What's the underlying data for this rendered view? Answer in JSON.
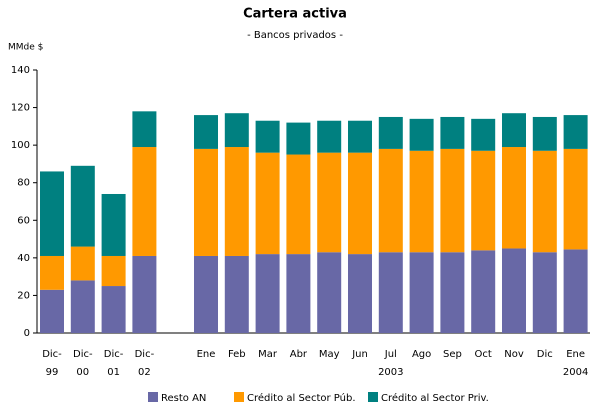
{
  "chart_data": {
    "type": "stacked_bar",
    "title": "Cartera activa",
    "subtitle": "- Bancos privados -",
    "y_label": "MMde $",
    "categories": [
      "Dic-",
      "Dic-",
      "Dic-",
      "Dic-",
      null,
      "Ene",
      "Feb",
      "Mar",
      "Abr",
      "May",
      "Jun",
      "Jul",
      "Ago",
      "Sep",
      "Oct",
      "Nov",
      "Dic",
      "Ene"
    ],
    "category_sublabels": [
      "99",
      "00",
      "01",
      "02",
      null,
      null,
      null,
      null,
      null,
      null,
      null,
      "2003",
      null,
      null,
      null,
      null,
      null,
      "2004"
    ],
    "series": [
      {
        "name": "Resto AN",
        "color": "#6868a6",
        "values": [
          23,
          28,
          25,
          41,
          null,
          41,
          41,
          42,
          42,
          43,
          42,
          43,
          43,
          43,
          44,
          45,
          43,
          44.5
        ]
      },
      {
        "name": "Crédito al Sector Púb.",
        "color": "#ff9900",
        "values": [
          18,
          18,
          16,
          58,
          null,
          57,
          58,
          54,
          53,
          53,
          54,
          55,
          54,
          55,
          53,
          54,
          54,
          53.5
        ]
      },
      {
        "name": "Crédito al Sector Priv.",
        "color": "#008080",
        "values": [
          45,
          43,
          33,
          19,
          null,
          18,
          18,
          17,
          17,
          17,
          17,
          17,
          17,
          17,
          17,
          18,
          18,
          18
        ]
      }
    ],
    "ylim": [
      0,
      140
    ],
    "yticks": [
      0,
      20,
      40,
      60,
      80,
      100,
      120,
      140
    ],
    "grid": false
  }
}
